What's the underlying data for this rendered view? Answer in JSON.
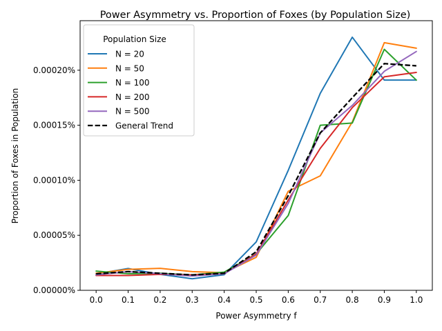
{
  "chart_data": {
    "type": "line",
    "title": "Power Asymmetry vs. Proportion of Foxes (by Population Size)",
    "xlabel": "Power Asymmetry f",
    "ylabel": "Proportion of Foxes in Population",
    "x": [
      0.0,
      0.1,
      0.2,
      0.3,
      0.4,
      0.5,
      0.6,
      0.7,
      0.8,
      0.9,
      1.0
    ],
    "xlim": [
      -0.05,
      1.05
    ],
    "ylim": [
      0.0,
      2.45e-06
    ],
    "xticks": [
      0.0,
      0.1,
      0.2,
      0.3,
      0.4,
      0.5,
      0.6,
      0.7,
      0.8,
      0.9,
      1.0
    ],
    "xtick_labels": [
      "0.0",
      "0.1",
      "0.2",
      "0.3",
      "0.4",
      "0.5",
      "0.6",
      "0.7",
      "0.8",
      "0.9",
      "1.0"
    ],
    "yticks": [
      0.0,
      5e-07,
      1e-06,
      1.5e-06,
      2e-06
    ],
    "ytick_labels": [
      "0.00000%",
      "0.00005%",
      "0.00010%",
      "0.00015%",
      "0.00020%"
    ],
    "grid": false,
    "legend": {
      "title": "Population Size",
      "placement": "top-left"
    },
    "series": [
      {
        "name": "N = 20",
        "color": "#1f77b4",
        "dashed": false,
        "values": [
          1.5e-07,
          1.98e-07,
          1.45e-07,
          1.05e-07,
          1.42e-07,
          4.4e-07,
          1.09e-06,
          1.79e-06,
          2.3e-06,
          1.91e-06,
          1.91e-06
        ]
      },
      {
        "name": "N = 50",
        "color": "#ff7f0e",
        "dashed": false,
        "values": [
          1.55e-07,
          1.9e-07,
          2e-07,
          1.7e-07,
          1.6e-07,
          3e-07,
          9e-07,
          1.04e-06,
          1.53e-06,
          2.25e-06,
          2.2e-06
        ]
      },
      {
        "name": "N = 100",
        "color": "#2ca02c",
        "dashed": false,
        "values": [
          1.75e-07,
          1.5e-07,
          1.55e-07,
          1.4e-07,
          1.65e-07,
          3.3e-07,
          6.8e-07,
          1.5e-06,
          1.52e-06,
          2.19e-06,
          1.91e-06
        ]
      },
      {
        "name": "N = 200",
        "color": "#d62728",
        "dashed": false,
        "values": [
          1.35e-07,
          1.35e-07,
          1.45e-07,
          1.4e-07,
          1.5e-07,
          3.3e-07,
          8.2e-07,
          1.29e-06,
          1.66e-06,
          1.94e-06,
          1.98e-06
        ]
      },
      {
        "name": "N = 500",
        "color": "#9467bd",
        "dashed": false,
        "values": [
          1.4e-07,
          1.7e-07,
          1.5e-07,
          1.3e-07,
          1.5e-07,
          3.2e-07,
          7.9e-07,
          1.43e-06,
          1.68e-06,
          1.99e-06,
          2.17e-06
        ]
      },
      {
        "name": "General Trend",
        "color": "#000000",
        "dashed": true,
        "values": [
          1.5e-07,
          1.7e-07,
          1.55e-07,
          1.4e-07,
          1.55e-07,
          3.5e-07,
          8.6e-07,
          1.43e-06,
          1.75e-06,
          2.06e-06,
          2.04e-06
        ]
      }
    ]
  }
}
